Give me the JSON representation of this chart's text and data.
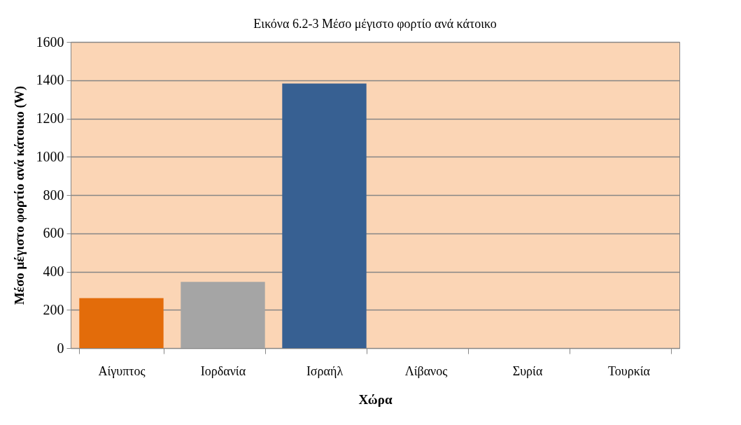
{
  "chart_data": {
    "type": "bar",
    "title": "Εικόνα 6.2-3 Μέσο μέγιστο φορτίο ανά κάτοικο",
    "xlabel": "Χώρα",
    "ylabel": "Μέσο μέγιστο φορτίο ανά κάτοικο (W)",
    "categories": [
      "Αίγυπτος",
      "Ιορδανία",
      "Ισραήλ",
      "Λίβανος",
      "Συρία",
      "Τουρκία"
    ],
    "values": [
      261,
      346,
      1383,
      0,
      0,
      0
    ],
    "colors": [
      "#e36c0a",
      "#a5a5a5",
      "#376092",
      "#376092",
      "#376092",
      "#376092"
    ],
    "ylim": [
      0,
      1600
    ],
    "yticks": [
      0,
      200,
      400,
      600,
      800,
      1000,
      1200,
      1400,
      1600
    ],
    "grid": "y"
  }
}
